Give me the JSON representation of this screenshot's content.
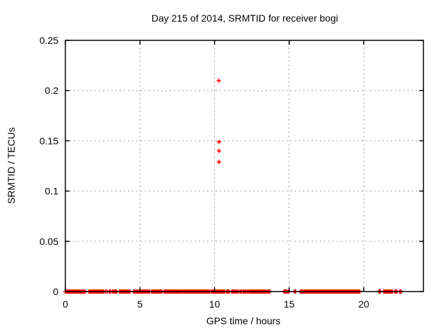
{
  "chart_data": {
    "type": "scatter",
    "title": "Day 215 of 2014, SRMTID for receiver bogi",
    "xlabel": "GPS time / hours",
    "ylabel": "SRMTID / TECUs",
    "xlim": [
      0,
      24
    ],
    "ylim": [
      0,
      0.25
    ],
    "xticks": [
      0,
      5,
      10,
      15,
      20
    ],
    "xtick_labels": [
      "0",
      "5",
      "10",
      "15",
      "20"
    ],
    "yticks": [
      0,
      0.05,
      0.1,
      0.15,
      0.2,
      0.25
    ],
    "ytick_labels": [
      "0",
      "0.05",
      "0.1",
      "0.15",
      "0.2",
      "0.25"
    ],
    "grid": true,
    "legend": "none",
    "marker": "plus",
    "marker_color": "#ff0000",
    "grid_color": "#989898",
    "border_color": "#000000",
    "outlier_points": [
      {
        "x": 10.28,
        "y": 0.21
      },
      {
        "x": 10.3,
        "y": 0.149
      },
      {
        "x": 10.3,
        "y": 0.14
      },
      {
        "x": 10.3,
        "y": 0.129
      }
    ],
    "baseline_value": 0,
    "baseline_point_spacing_hours": 0.04,
    "baseline_segments": [
      [
        0.0,
        0.08
      ],
      [
        0.12,
        1.34
      ],
      [
        1.58,
        2.5
      ],
      [
        2.58,
        2.58
      ],
      [
        2.7,
        2.7
      ],
      [
        2.82,
        2.82
      ],
      [
        2.95,
        3.05
      ],
      [
        3.17,
        3.45
      ],
      [
        3.63,
        4.33
      ],
      [
        4.56,
        5.26
      ],
      [
        5.31,
        5.64
      ],
      [
        5.78,
        5.8
      ],
      [
        5.87,
        6.48
      ],
      [
        6.62,
        7.77
      ],
      [
        7.86,
        9.68
      ],
      [
        9.79,
        10.69
      ],
      [
        10.81,
        11.0
      ],
      [
        11.15,
        11.34
      ],
      [
        11.43,
        11.58
      ],
      [
        11.7,
        11.82
      ],
      [
        11.92,
        11.96
      ],
      [
        12.04,
        12.08
      ],
      [
        12.18,
        12.3
      ],
      [
        12.39,
        13.25
      ],
      [
        13.32,
        13.43
      ],
      [
        13.53,
        13.71
      ],
      [
        14.64,
        14.8
      ],
      [
        14.88,
        14.99
      ],
      [
        15.35,
        15.43
      ],
      [
        15.74,
        17.76
      ],
      [
        17.83,
        19.62
      ],
      [
        19.66,
        19.74
      ],
      [
        21.01,
        21.12
      ],
      [
        21.33,
        21.92
      ],
      [
        22.07,
        22.22
      ],
      [
        22.41,
        22.52
      ]
    ]
  }
}
